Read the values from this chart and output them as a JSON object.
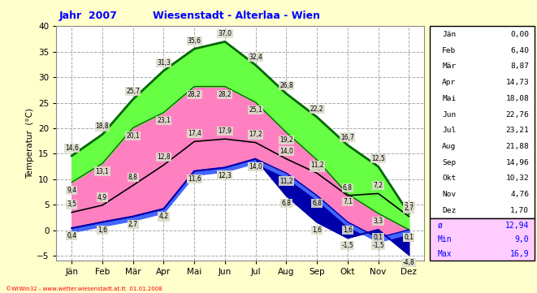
{
  "title1": "Jahr  2007",
  "title2": "Wiesenstadt - Alterlaa - Wien",
  "xlabel_months": [
    "Jän",
    "Feb",
    "Mär",
    "Apr",
    "Mai",
    "Jun",
    "Jul",
    "Aug",
    "Sep",
    "Okt",
    "Nov",
    "Dez"
  ],
  "ylabel": "Temperatur  (°C)",
  "x": [
    0,
    1,
    2,
    3,
    4,
    5,
    6,
    7,
    8,
    9,
    10,
    11
  ],
  "abs_max": [
    14.6,
    18.8,
    25.7,
    31.3,
    35.6,
    37.0,
    32.4,
    26.8,
    22.2,
    16.7,
    12.5,
    3.3
  ],
  "avg_max": [
    9.4,
    13.1,
    20.1,
    23.1,
    28.2,
    28.2,
    25.1,
    19.2,
    13.8,
    7.1,
    3.3,
    0.1
  ],
  "avg_temp": [
    3.5,
    4.9,
    8.8,
    12.8,
    17.4,
    17.9,
    17.2,
    14.0,
    11.2,
    6.8,
    7.2,
    2.7
  ],
  "avg_min": [
    0.4,
    1.6,
    2.7,
    4.2,
    11.6,
    12.3,
    14.0,
    11.2,
    6.8,
    1.6,
    -1.5,
    0.1
  ],
  "abs_min": [
    0.4,
    1.6,
    2.7,
    4.2,
    11.6,
    12.3,
    14.0,
    6.8,
    1.6,
    -1.5,
    0.1,
    -4.8
  ],
  "legend_months": [
    "Jän",
    "Feb",
    "Mär",
    "Apr",
    "Mai",
    "Jun",
    "Jul",
    "Aug",
    "Sep",
    "Okt",
    "Nov",
    "Dez"
  ],
  "legend_vals": [
    0.0,
    6.4,
    8.87,
    14.73,
    18.08,
    22.76,
    23.21,
    21.88,
    14.96,
    10.32,
    4.76,
    1.7
  ],
  "s_val": 12.94,
  "min_val": 9.0,
  "max_val": 16.9,
  "color_bg": "#ffffcc",
  "color_plot_bg": "#ffffff",
  "color_pink": "#ff80c0",
  "color_light_green": "#66ff44",
  "color_dark_green": "#006600",
  "color_dark_blue": "#0000aa",
  "color_mid_blue": "#4466ff",
  "color_black": "#000000",
  "color_grid": "#aaaaaa",
  "color_yellow_spine": "#eeee88",
  "ylim": [
    -6,
    40
  ],
  "footnote": "©WrWin32 - www.wetter.wiesenstadt.at.tt  01.01.2008"
}
